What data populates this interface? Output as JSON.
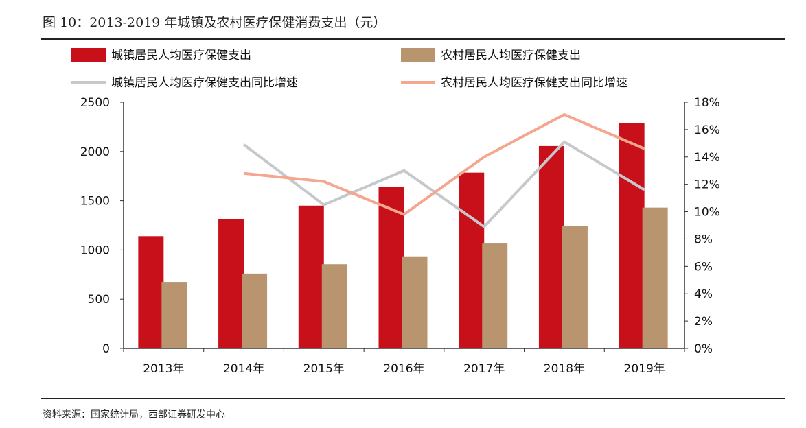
{
  "title": "图 10：2013-2019 年城镇及农村医疗保健消费支出（元）",
  "source": "资料来源：国家统计局，西部证券研发中心",
  "chart_data": {
    "type": "bar",
    "categories": [
      "2013年",
      "2014年",
      "2015年",
      "2016年",
      "2017年",
      "2018年",
      "2019年"
    ],
    "y_left": {
      "ylim": [
        0,
        2500
      ],
      "ticks": [
        0,
        500,
        1000,
        1500,
        2000,
        2500
      ]
    },
    "y_right": {
      "ylim": [
        0,
        18
      ],
      "ticks": [
        "0%",
        "2%",
        "4%",
        "6%",
        "8%",
        "10%",
        "12%",
        "14%",
        "16%",
        "18%"
      ]
    },
    "legend_placement": "top",
    "grid": false,
    "series": [
      {
        "name": "城镇居民人均医疗保健支出",
        "type": "bar",
        "axis": "left",
        "color": "#c8101a",
        "values": [
          1140,
          1310,
          1450,
          1640,
          1785,
          2055,
          2285
        ]
      },
      {
        "name": "农村居民人均医疗保健支出",
        "type": "bar",
        "axis": "left",
        "color": "#b8946f",
        "values": [
          675,
          760,
          855,
          935,
          1065,
          1245,
          1430
        ]
      },
      {
        "name": "城镇居民人均医疗保健支出同比增速",
        "type": "line",
        "axis": "right",
        "color": "#c6c9cc",
        "values": [
          null,
          14.9,
          10.5,
          13.0,
          8.9,
          15.1,
          11.6
        ]
      },
      {
        "name": "农村居民人均医疗保健支出同比增速",
        "type": "line",
        "axis": "right",
        "color": "#f4a68e",
        "values": [
          null,
          12.8,
          12.2,
          9.8,
          14.0,
          17.1,
          14.6
        ]
      }
    ]
  }
}
